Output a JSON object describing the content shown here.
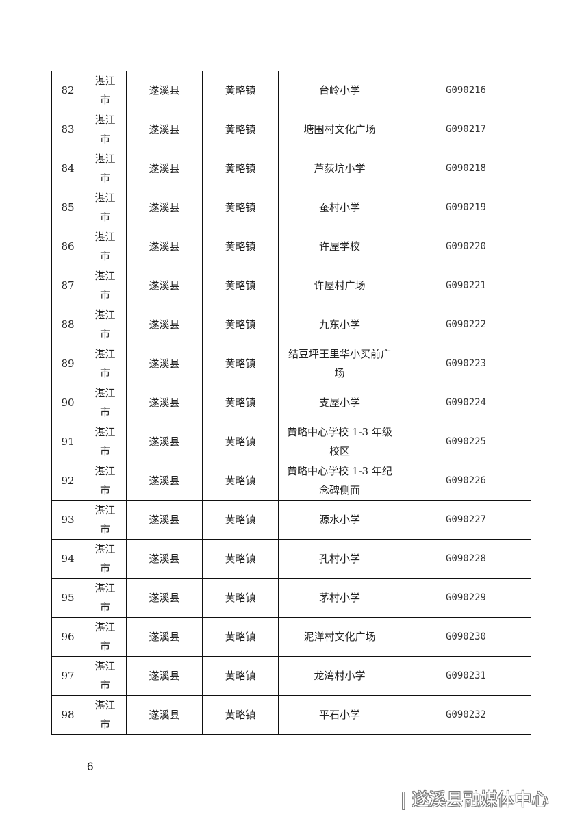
{
  "table": {
    "rows": [
      {
        "no": "82",
        "city": "湛江市",
        "county": "遂溪县",
        "town": "黄略镇",
        "site": "台岭小学",
        "code": "G090216"
      },
      {
        "no": "83",
        "city": "湛江市",
        "county": "遂溪县",
        "town": "黄略镇",
        "site": "塘围村文化广场",
        "code": "G090217"
      },
      {
        "no": "84",
        "city": "湛江市",
        "county": "遂溪县",
        "town": "黄略镇",
        "site": "芦荻坑小学",
        "code": "G090218"
      },
      {
        "no": "85",
        "city": "湛江市",
        "county": "遂溪县",
        "town": "黄略镇",
        "site": "蚕村小学",
        "code": "G090219"
      },
      {
        "no": "86",
        "city": "湛江市",
        "county": "遂溪县",
        "town": "黄略镇",
        "site": "许屋学校",
        "code": "G090220"
      },
      {
        "no": "87",
        "city": "湛江市",
        "county": "遂溪县",
        "town": "黄略镇",
        "site": "许屋村广场",
        "code": "G090221"
      },
      {
        "no": "88",
        "city": "湛江市",
        "county": "遂溪县",
        "town": "黄略镇",
        "site": "九东小学",
        "code": "G090222"
      },
      {
        "no": "89",
        "city": "湛江市",
        "county": "遂溪县",
        "town": "黄略镇",
        "site": "结豆坪王里华小买前广场",
        "code": "G090223"
      },
      {
        "no": "90",
        "city": "湛江市",
        "county": "遂溪县",
        "town": "黄略镇",
        "site": "支屋小学",
        "code": "G090224"
      },
      {
        "no": "91",
        "city": "湛江市",
        "county": "遂溪县",
        "town": "黄略镇",
        "site": "黄略中心学校 1-3 年级校区",
        "code": "G090225"
      },
      {
        "no": "92",
        "city": "湛江市",
        "county": "遂溪县",
        "town": "黄略镇",
        "site": "黄略中心学校 1-3 年纪念碑侧面",
        "code": "G090226"
      },
      {
        "no": "93",
        "city": "湛江市",
        "county": "遂溪县",
        "town": "黄略镇",
        "site": "源水小学",
        "code": "G090227"
      },
      {
        "no": "94",
        "city": "湛江市",
        "county": "遂溪县",
        "town": "黄略镇",
        "site": "孔村小学",
        "code": "G090228"
      },
      {
        "no": "95",
        "city": "湛江市",
        "county": "遂溪县",
        "town": "黄略镇",
        "site": "茅村小学",
        "code": "G090229"
      },
      {
        "no": "96",
        "city": "湛江市",
        "county": "遂溪县",
        "town": "黄略镇",
        "site": "泥洋村文化广场",
        "code": "G090230"
      },
      {
        "no": "97",
        "city": "湛江市",
        "county": "遂溪县",
        "town": "黄略镇",
        "site": "龙湾村小学",
        "code": "G090231"
      },
      {
        "no": "98",
        "city": "湛江市",
        "county": "遂溪县",
        "town": "黄略镇",
        "site": "平石小学",
        "code": "G090232"
      }
    ]
  },
  "page_number": "6",
  "watermark": "| 遂溪县融媒体中心"
}
